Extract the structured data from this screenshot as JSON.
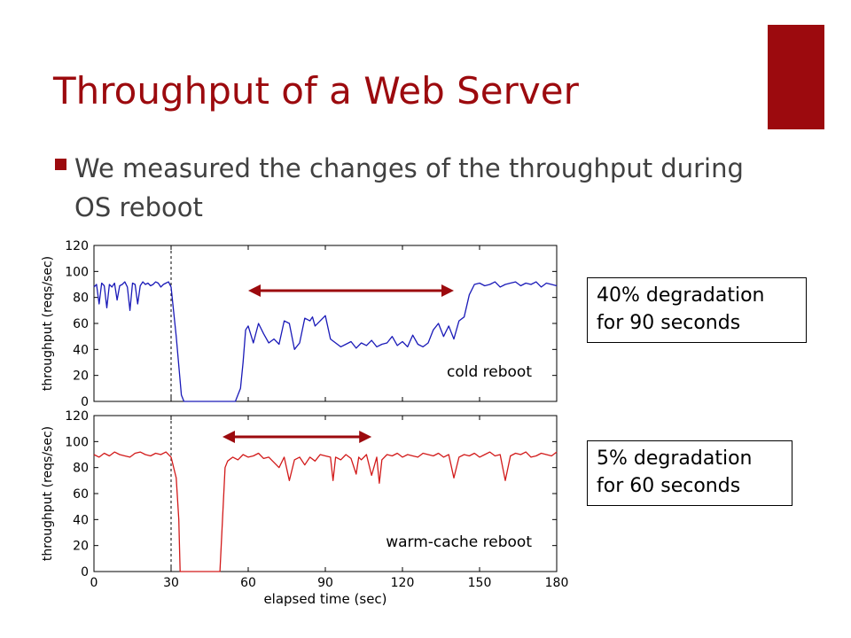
{
  "slide": {
    "title": "Throughput of a Web Server",
    "bullet": "We measured the changes of the throughput during OS reboot",
    "accent_color": "#9c0a0e"
  },
  "notes": [
    {
      "lines": [
        "40% degradation",
        "for 90 seconds"
      ]
    },
    {
      "lines": [
        "5% degradation",
        "for 60 seconds"
      ]
    }
  ],
  "chart_data": [
    {
      "type": "line",
      "ylabel": "throughput (reqs/sec)",
      "xlabel": "",
      "annotation": "cold reboot",
      "color": "#1a1ab8",
      "xlim": [
        0,
        180
      ],
      "ylim": [
        0,
        120
      ],
      "xticks": [
        0,
        30,
        60,
        90,
        120,
        150,
        180
      ],
      "yticks": [
        0,
        20,
        40,
        60,
        80,
        100,
        120
      ],
      "reboot_marker_x": 30,
      "arrow": {
        "from": 60,
        "to": 140
      },
      "series": [
        {
          "x": [
            0,
            1,
            2,
            3,
            4,
            5,
            6,
            7,
            8,
            9,
            10,
            11,
            12,
            13,
            14,
            15,
            16,
            17,
            18,
            19,
            20,
            21,
            22,
            23,
            24,
            25,
            26,
            27,
            28,
            29,
            30,
            32,
            34,
            35,
            45,
            55,
            57,
            58,
            59,
            60,
            62,
            64,
            66,
            68,
            70,
            72,
            74,
            76,
            78,
            80,
            82,
            84,
            85,
            86,
            88,
            90,
            92,
            94,
            96,
            98,
            100,
            102,
            104,
            106,
            108,
            110,
            112,
            114,
            116,
            118,
            120,
            122,
            124,
            126,
            128,
            130,
            132,
            134,
            136,
            138,
            140,
            142,
            144,
            146,
            148,
            150,
            152,
            154,
            156,
            158,
            160,
            162,
            164,
            166,
            168,
            170,
            172,
            174,
            176,
            178,
            180
          ],
          "y": [
            88,
            90,
            75,
            91,
            89,
            72,
            90,
            88,
            91,
            78,
            89,
            90,
            92,
            88,
            70,
            91,
            90,
            75,
            89,
            92,
            90,
            91,
            89,
            90,
            92,
            91,
            88,
            90,
            91,
            92,
            88,
            50,
            5,
            0,
            0,
            0,
            10,
            30,
            55,
            58,
            45,
            60,
            52,
            45,
            48,
            44,
            62,
            60,
            40,
            45,
            64,
            62,
            65,
            58,
            62,
            66,
            48,
            45,
            42,
            44,
            46,
            41,
            45,
            43,
            47,
            42,
            44,
            45,
            50,
            43,
            46,
            42,
            51,
            44,
            42,
            45,
            55,
            60,
            50,
            58,
            48,
            62,
            65,
            82,
            90,
            91,
            89,
            90,
            92,
            88,
            90,
            91,
            92,
            89,
            91,
            90,
            92,
            88,
            91,
            90,
            89
          ]
        }
      ]
    },
    {
      "type": "line",
      "ylabel": "throughput (reqs/sec)",
      "xlabel": "elapsed time (sec)",
      "annotation": "warm-cache reboot",
      "color": "#d21a1a",
      "xlim": [
        0,
        180
      ],
      "ylim": [
        0,
        120
      ],
      "xticks": [
        0,
        30,
        60,
        90,
        120,
        150,
        180
      ],
      "yticks": [
        0,
        20,
        40,
        60,
        80,
        100,
        120
      ],
      "reboot_marker_x": 30,
      "arrow": {
        "from": 50,
        "to": 108
      },
      "series": [
        {
          "x": [
            0,
            2,
            4,
            6,
            8,
            10,
            12,
            14,
            16,
            18,
            20,
            22,
            24,
            26,
            28,
            30,
            32,
            33,
            33.5,
            40,
            49,
            50,
            51,
            52,
            54,
            56,
            58,
            60,
            62,
            64,
            66,
            68,
            70,
            72,
            74,
            76,
            78,
            80,
            82,
            84,
            86,
            88,
            90,
            92,
            93,
            94,
            96,
            98,
            100,
            102,
            103,
            104,
            106,
            108,
            110,
            111,
            112,
            114,
            116,
            118,
            120,
            122,
            124,
            126,
            128,
            130,
            132,
            134,
            136,
            138,
            140,
            142,
            144,
            146,
            148,
            150,
            152,
            154,
            156,
            158,
            160,
            162,
            164,
            166,
            168,
            170,
            172,
            174,
            176,
            178,
            180
          ],
          "y": [
            90,
            88,
            91,
            89,
            92,
            90,
            89,
            88,
            91,
            92,
            90,
            89,
            91,
            90,
            92,
            88,
            72,
            40,
            0,
            0,
            0,
            40,
            80,
            85,
            88,
            86,
            90,
            88,
            89,
            91,
            87,
            88,
            84,
            80,
            88,
            70,
            86,
            88,
            82,
            88,
            85,
            90,
            89,
            88,
            70,
            88,
            86,
            90,
            87,
            75,
            88,
            86,
            90,
            74,
            88,
            68,
            86,
            90,
            89,
            91,
            88,
            90,
            89,
            88,
            91,
            90,
            89,
            91,
            88,
            90,
            72,
            88,
            90,
            89,
            91,
            88,
            90,
            92,
            89,
            90,
            70,
            89,
            91,
            90,
            92,
            88,
            89,
            91,
            90,
            89,
            92
          ]
        }
      ]
    }
  ]
}
